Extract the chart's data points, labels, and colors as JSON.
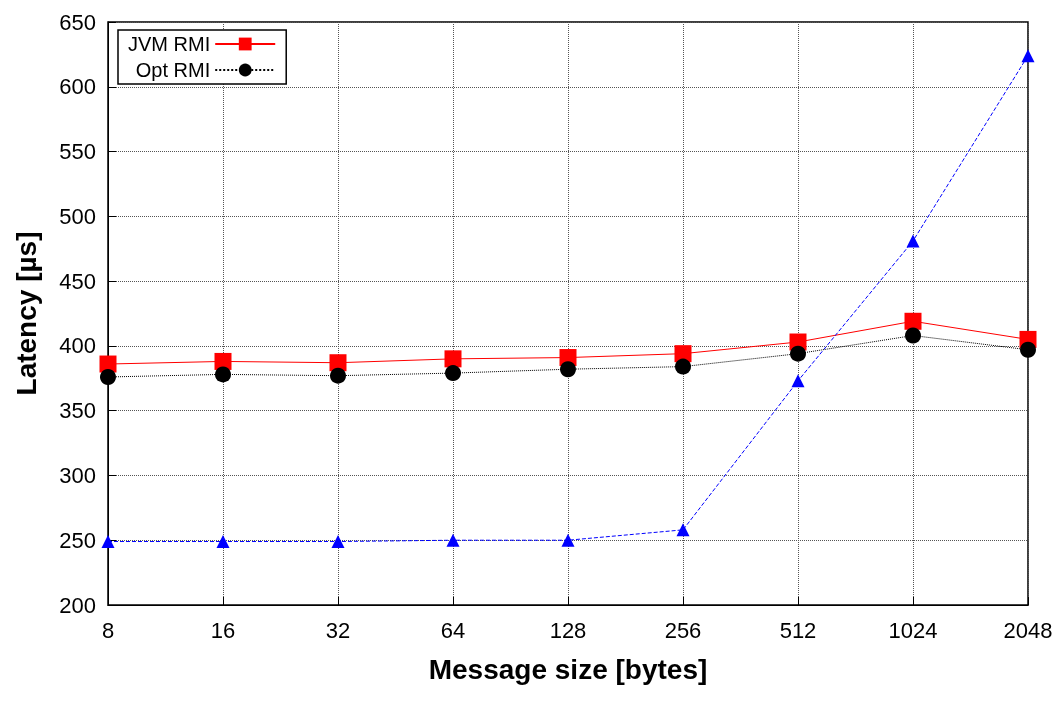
{
  "chart_data": {
    "type": "line",
    "xlabel": "Message size [bytes]",
    "ylabel": "Latency [µs]",
    "categories": [
      "8",
      "16",
      "32",
      "64",
      "128",
      "256",
      "512",
      "1024",
      "2048"
    ],
    "ylim": [
      200,
      650
    ],
    "yticks": [
      200,
      250,
      300,
      350,
      400,
      450,
      500,
      550,
      600,
      650
    ],
    "grid": true,
    "legend": "top left",
    "series": [
      {
        "name": "JVM RMI",
        "color": "#ff0000",
        "marker": "square",
        "line_style": "solid",
        "values": [
          386,
          388,
          387,
          390,
          391,
          394,
          403,
          419,
          405
        ]
      },
      {
        "color": "#0000ff",
        "marker": "triangle",
        "line_style": "dashed",
        "values": [
          249,
          249,
          249,
          250,
          250,
          258,
          373,
          481,
          624
        ]
      },
      {
        "name": "Opt RMI",
        "color": "#000000",
        "marker": "circle",
        "line_style": "dotted",
        "values": [
          376,
          378,
          377,
          379,
          382,
          384,
          394,
          408,
          397
        ]
      }
    ]
  }
}
